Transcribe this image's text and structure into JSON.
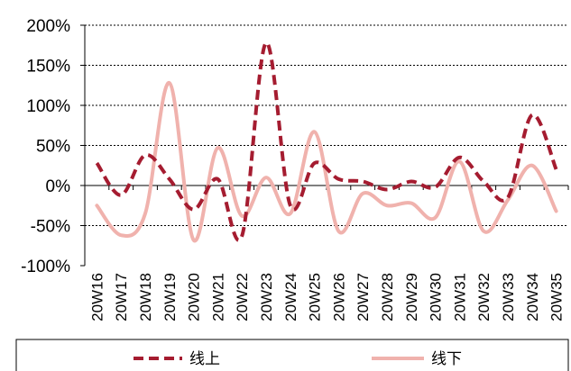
{
  "chart_data": {
    "type": "line",
    "title": "",
    "xlabel": "",
    "ylabel": "",
    "ylim": [
      -100,
      200
    ],
    "y_ticks": [
      "200%",
      "150%",
      "100%",
      "50%",
      "0%",
      "-50%",
      "-100%"
    ],
    "y_tick_values": [
      200,
      150,
      100,
      50,
      0,
      -50,
      -100
    ],
    "grid": "horizontal dotted",
    "legend": "bottom",
    "categories": [
      "20W16",
      "20W17",
      "20W18",
      "20W19",
      "20W20",
      "20W21",
      "20W22",
      "20W23",
      "20W24",
      "20W25",
      "20W26",
      "20W27",
      "20W28",
      "20W29",
      "20W30",
      "20W31",
      "20W32",
      "20W33",
      "20W34",
      "20W35"
    ],
    "series": [
      {
        "name": "线上",
        "style": "dashed",
        "color": "#a51c30",
        "values": [
          28,
          -12,
          38,
          8,
          -30,
          8,
          -63,
          178,
          -25,
          28,
          8,
          5,
          -5,
          5,
          -2,
          35,
          5,
          -15,
          88,
          20
        ]
      },
      {
        "name": "线下",
        "style": "solid",
        "color": "#f0b2ad",
        "values": [
          -25,
          -62,
          -35,
          128,
          -68,
          47,
          -38,
          10,
          -35,
          67,
          -57,
          -10,
          -25,
          -22,
          -40,
          30,
          -57,
          -18,
          25,
          -32
        ]
      }
    ]
  }
}
